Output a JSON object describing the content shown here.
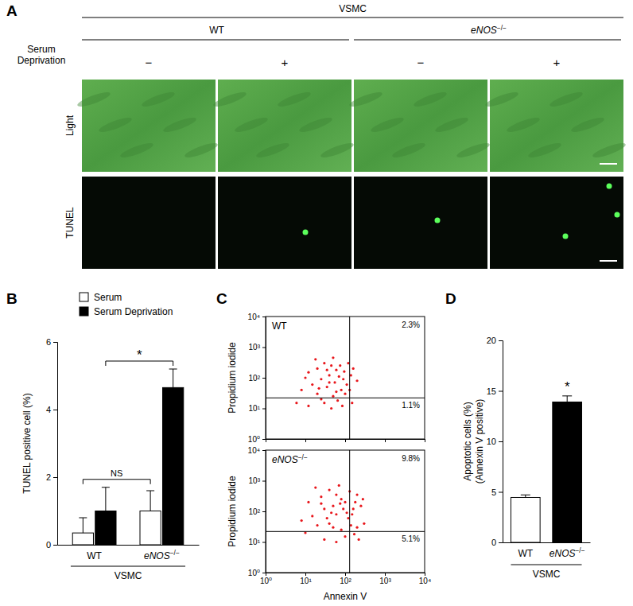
{
  "panel_labels": [
    "A",
    "B",
    "C",
    "D"
  ],
  "image_panel": {
    "title": "VSMC",
    "groups": [
      "WT",
      "eNOS−/−"
    ],
    "condition_label": "Serum Deprivation",
    "conditions": [
      "−",
      "+",
      "−",
      "+"
    ],
    "rows": [
      "Light",
      "TUNEL"
    ]
  },
  "chart_data": [
    {
      "type": "bar",
      "categories": [
        "WT",
        "eNOS−/−"
      ],
      "series": [
        {
          "name": "Serum",
          "color": "#ffffff",
          "values": [
            0.35,
            1.0
          ],
          "errors": [
            0.45,
            0.6
          ]
        },
        {
          "name": "Serum Deprivation",
          "color": "#000000",
          "values": [
            1.0,
            4.65
          ],
          "errors": [
            0.7,
            0.55
          ]
        }
      ],
      "ylim": [
        0,
        6
      ],
      "yticks": [
        0,
        2,
        4,
        6
      ],
      "ylabel": "TUNEL positive cell (%)",
      "xlabel": "VSMC",
      "legend": "top-left",
      "annotations": [
        "*",
        "NS"
      ]
    },
    {
      "type": "scatter",
      "title": "WT",
      "log": true,
      "color": "#e8161b",
      "tick_labels": "y",
      "x": [
        12,
        20,
        30,
        45,
        60,
        25,
        40,
        70,
        15,
        35,
        55,
        90,
        110,
        80,
        20,
        50,
        30,
        65,
        100,
        140,
        160,
        8,
        10,
        18,
        50,
        120,
        35,
        75,
        95,
        25,
        45,
        150,
        130,
        200,
        6,
        12,
        85,
        40,
        60,
        22
      ],
      "y": [
        150,
        200,
        300,
        250,
        180,
        90,
        120,
        110,
        60,
        50,
        70,
        90,
        60,
        40,
        30,
        25,
        15,
        18,
        30,
        120,
        200,
        40,
        100,
        400,
        450,
        300,
        180,
        250,
        160,
        20,
        10,
        15,
        40,
        80,
        15,
        12,
        12,
        70,
        35,
        45
      ],
      "xlim": [
        1,
        10000
      ],
      "ylim": [
        1,
        10000
      ],
      "xticks": [
        {
          "value": 1,
          "label": "10⁰"
        },
        {
          "value": 10,
          "label": "10¹"
        },
        {
          "value": 100,
          "label": "10²"
        },
        {
          "value": 1000,
          "label": "10³"
        },
        {
          "value": 10000,
          "label": "10⁴"
        }
      ],
      "yticks": [
        {
          "value": 1,
          "label": "10⁰"
        },
        {
          "value": 10,
          "label": "10¹"
        },
        {
          "value": 100,
          "label": "10²"
        },
        {
          "value": 1000,
          "label": "10³"
        },
        {
          "value": 10000,
          "label": "10⁴"
        }
      ],
      "ylabel": "Propidium iodide",
      "quadrant_gate": {
        "x": 130,
        "y": 22
      },
      "annotations": [
        "2.3%",
        "1.1%"
      ]
    },
    {
      "type": "scatter",
      "title": "eNOS−/−",
      "log": true,
      "color": "#e8161b",
      "x": [
        12,
        25,
        40,
        60,
        80,
        30,
        50,
        90,
        15,
        35,
        60,
        110,
        150,
        180,
        200,
        250,
        130,
        20,
        50,
        80,
        100,
        170,
        220,
        300,
        140,
        10,
        30,
        60,
        18,
        70,
        100,
        45,
        25,
        120,
        160,
        280,
        8,
        40,
        200,
        75
      ],
      "y": [
        200,
        300,
        500,
        350,
        250,
        120,
        150,
        120,
        70,
        60,
        80,
        90,
        80,
        200,
        350,
        150,
        450,
        35,
        30,
        25,
        15,
        18,
        12,
        40,
        35,
        20,
        12,
        10,
        600,
        700,
        200,
        90,
        180,
        60,
        120,
        250,
        50,
        40,
        30,
        180
      ],
      "xlim": [
        1,
        10000
      ],
      "ylim": [
        1,
        10000
      ],
      "xticks": [
        {
          "value": 1,
          "label": "10⁰"
        },
        {
          "value": 10,
          "label": "10¹"
        },
        {
          "value": 100,
          "label": "10²"
        },
        {
          "value": 1000,
          "label": "10³"
        },
        {
          "value": 10000,
          "label": "10⁴"
        }
      ],
      "yticks": [
        {
          "value": 1,
          "label": "10⁰"
        },
        {
          "value": 10,
          "label": "10¹"
        },
        {
          "value": 100,
          "label": "10²"
        },
        {
          "value": 1000,
          "label": "10³"
        },
        {
          "value": 10000,
          "label": "10⁴"
        }
      ],
      "ylabel": "Propidium iodide",
      "xlabel": "Annexin V",
      "quadrant_gate": {
        "x": 130,
        "y": 22
      },
      "annotations": [
        "9.8%",
        "5.1%"
      ]
    },
    {
      "type": "bar",
      "categories": [
        "WT",
        "eNOS−/−"
      ],
      "values": [
        4.45,
        13.9
      ],
      "errors": [
        0.25,
        0.6
      ],
      "colors": [
        "#ffffff",
        "#000000"
      ],
      "ylim": [
        0,
        20
      ],
      "yticks": [
        0,
        5,
        10,
        15,
        20
      ],
      "ylabel": [
        "Apoptotic cells (%)",
        "(Annexin V positive)"
      ],
      "xlabel": "VSMC",
      "annotations": [
        "*"
      ]
    }
  ]
}
